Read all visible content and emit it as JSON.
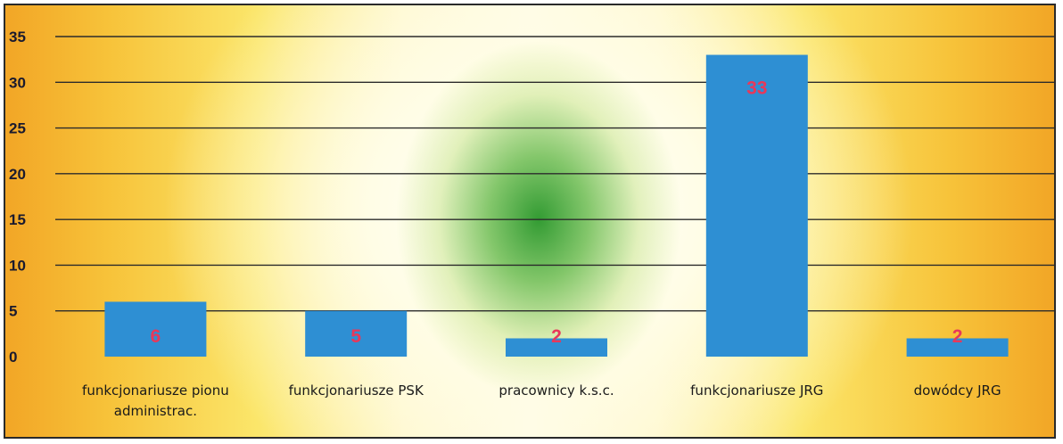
{
  "chart_data": {
    "type": "bar",
    "title": "",
    "xlabel": "",
    "ylabel": "",
    "categories": [
      [
        "funkcjonariusze pionu",
        "administrac."
      ],
      [
        "funkcjonariusze PSK"
      ],
      [
        "pracownicy k.s.c."
      ],
      [
        "funkcjonariusze JRG"
      ],
      [
        "dowódcy JRG"
      ]
    ],
    "values": [
      6,
      5,
      2,
      33,
      2
    ],
    "data_labels": [
      "6",
      "5",
      "2",
      "33",
      "2"
    ],
    "ylim": [
      0,
      35
    ],
    "yticks": [
      "0",
      "5",
      "10",
      "15",
      "20",
      "25",
      "30",
      "35"
    ],
    "grid": true,
    "legend": "none",
    "colors": {
      "bar": "#2e8fd3",
      "data_label": "#e8385a",
      "background_edge": "#f2a626",
      "background_center": "#2e9a2e"
    }
  }
}
